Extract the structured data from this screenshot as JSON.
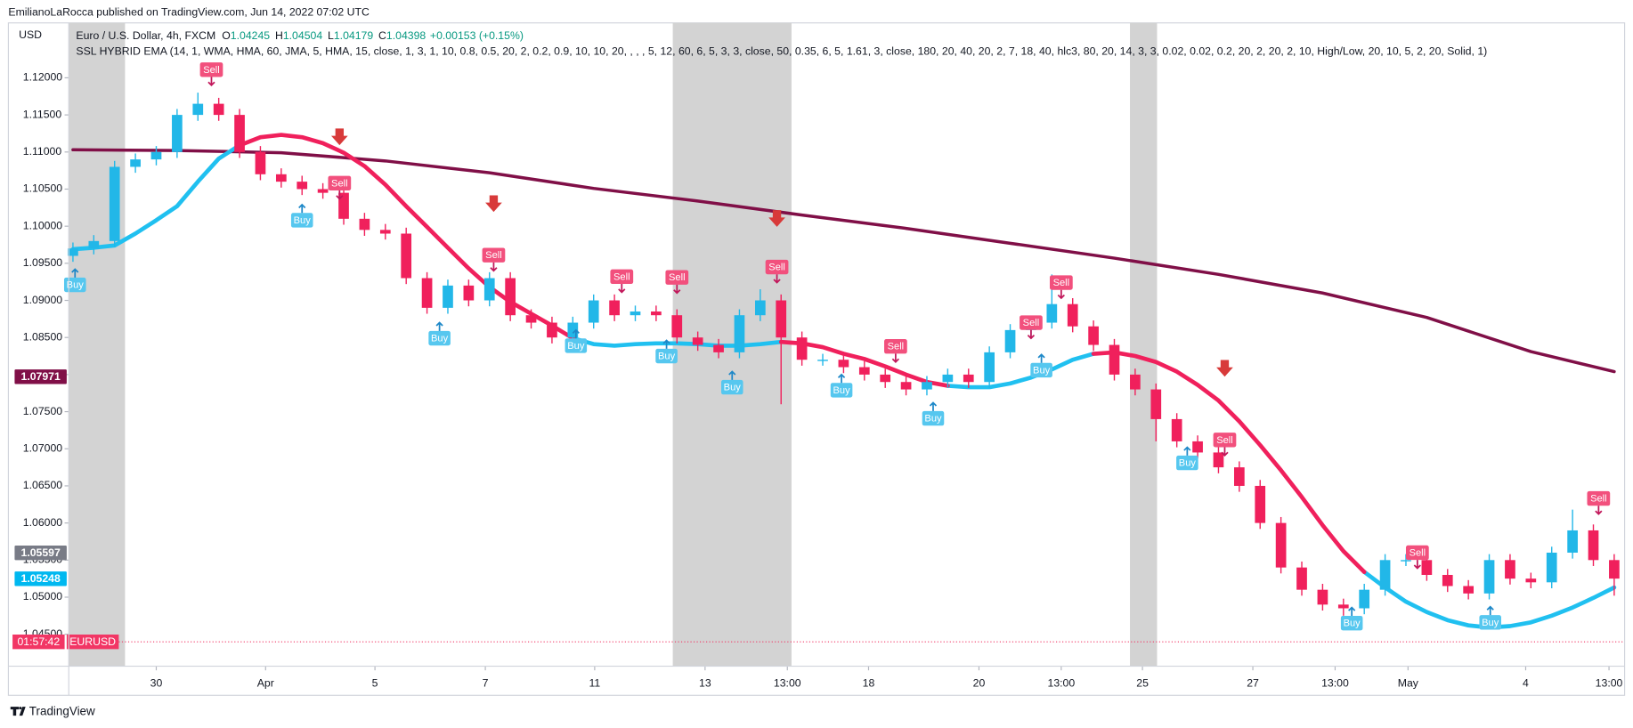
{
  "header": {
    "attribution": "EmilianoLaRocca published on TradingView.com, Jun 14, 2022 07:02 UTC"
  },
  "footer": "TradingView",
  "chart_data": {
    "type": "candlestick",
    "currency": "USD",
    "title": "Euro / U.S. Dollar, 4h, FXCM",
    "quote": [
      {
        "key": "O",
        "value": 1.04245
      },
      {
        "key": "H",
        "value": 1.04504
      },
      {
        "key": "L",
        "value": 1.04179
      },
      {
        "key": "C",
        "value": 1.04398
      }
    ],
    "change": "+0.00153 (+0.15%)",
    "indicator": "SSL HYBRID EMA (14, 1, WMA, HMA, 60, JMA, 5, HMA, 15, close, 1, 3, 1, 10, 0.8, 0.5, 20, 2, 0.2, 0.9, 10, 10, 20, , , , 5, 12, 60, 6, 5, 3, 3, close, 50, 0.35, 6, 5, 1.61, 3, close, 180, 20, 40, 20, 2, 7, 18, 40, hlc3, 80, 20, 14, 3, 3, 0.02, 0.02, 0.2, 20, 2, 20, 2, 10, High/Low, 20, 10, 5, 2, 20, Solid, 1)",
    "x": [
      0,
      1,
      2,
      3,
      4,
      5,
      6,
      7,
      8,
      9,
      10,
      11,
      12,
      13,
      14,
      15,
      16,
      17,
      18,
      19,
      20,
      21,
      22,
      23,
      24,
      25,
      26,
      27,
      28,
      29,
      30,
      31,
      32,
      33,
      34,
      35,
      36,
      37,
      38,
      39,
      40,
      41,
      42,
      43,
      44,
      45,
      46,
      47,
      48,
      49,
      50,
      51,
      52,
      53,
      54,
      55,
      56,
      57,
      58,
      59,
      60,
      61,
      62,
      63,
      64,
      65,
      66,
      67,
      68,
      69,
      70,
      71,
      72,
      73,
      74
    ],
    "open": [
      1.096,
      1.097,
      1.098,
      1.108,
      1.109,
      1.11,
      1.115,
      1.1165,
      1.115,
      1.11,
      1.107,
      1.106,
      1.105,
      1.1045,
      1.101,
      1.0995,
      1.099,
      1.093,
      1.089,
      1.092,
      1.09,
      1.093,
      1.088,
      1.087,
      1.085,
      1.087,
      1.09,
      1.088,
      1.0885,
      1.088,
      1.085,
      1.084,
      1.083,
      1.088,
      1.09,
      1.085,
      1.082,
      1.082,
      1.081,
      1.08,
      1.079,
      1.078,
      1.079,
      1.08,
      1.079,
      1.083,
      1.086,
      1.087,
      1.0895,
      1.0865,
      1.084,
      1.08,
      1.078,
      1.074,
      1.071,
      1.0695,
      1.0675,
      1.065,
      1.06,
      1.054,
      1.051,
      1.049,
      1.0485,
      1.051,
      1.055,
      1.055,
      1.053,
      1.0515,
      1.0505,
      1.055,
      1.0525,
      1.052,
      1.056,
      1.059,
      1.055
    ],
    "high": [
      1.0978,
      1.0988,
      1.1088,
      1.1098,
      1.1108,
      1.1158,
      1.118,
      1.1173,
      1.1158,
      1.1108,
      1.1078,
      1.1068,
      1.1058,
      1.1053,
      1.1018,
      1.1003,
      1.0998,
      1.0938,
      1.0928,
      1.0928,
      1.0938,
      1.0938,
      1.0888,
      1.0878,
      1.0878,
      1.0908,
      1.0908,
      1.0893,
      1.0893,
      1.0888,
      1.0858,
      1.0848,
      1.0888,
      1.0915,
      1.0908,
      1.0858,
      1.0828,
      1.0828,
      1.0818,
      1.0808,
      1.0798,
      1.0798,
      1.0808,
      1.0808,
      1.0838,
      1.0868,
      1.0878,
      1.0935,
      1.0903,
      1.0873,
      1.0848,
      1.0808,
      1.0788,
      1.0748,
      1.0718,
      1.0703,
      1.0683,
      1.0658,
      1.0608,
      1.0548,
      1.0518,
      1.0498,
      1.0518,
      1.0558,
      1.0558,
      1.0558,
      1.0538,
      1.0523,
      1.0558,
      1.0558,
      1.0533,
      1.0568,
      1.0618,
      1.0598,
      1.0558
    ],
    "low": [
      1.0952,
      1.0962,
      1.0972,
      1.1072,
      1.1082,
      1.1092,
      1.1142,
      1.1142,
      1.1092,
      1.1062,
      1.1052,
      1.1042,
      1.1037,
      1.1002,
      1.0987,
      1.0982,
      1.0922,
      1.0882,
      1.0882,
      1.0892,
      1.0892,
      1.0872,
      1.0862,
      1.0842,
      1.0842,
      1.0862,
      1.0872,
      1.0872,
      1.0872,
      1.0842,
      1.0832,
      1.0822,
      1.0822,
      1.0872,
      1.076,
      1.0812,
      1.0812,
      1.0802,
      1.0792,
      1.0782,
      1.0772,
      1.0772,
      1.0782,
      1.0782,
      1.0782,
      1.0822,
      1.0852,
      1.0862,
      1.0857,
      1.0832,
      1.0792,
      1.0772,
      1.071,
      1.0702,
      1.0687,
      1.0667,
      1.0642,
      1.0592,
      1.0532,
      1.0502,
      1.0482,
      1.0475,
      1.0477,
      1.0502,
      1.0542,
      1.0522,
      1.0507,
      1.0497,
      1.0497,
      1.0517,
      1.0512,
      1.0512,
      1.0552,
      1.0542,
      1.0502
    ],
    "close": [
      1.097,
      1.098,
      1.108,
      1.109,
      1.11,
      1.115,
      1.1165,
      1.115,
      1.11,
      1.107,
      1.106,
      1.105,
      1.1045,
      1.101,
      1.0995,
      1.099,
      1.093,
      1.089,
      1.092,
      1.09,
      1.093,
      1.088,
      1.087,
      1.085,
      1.087,
      1.09,
      1.088,
      1.0885,
      1.088,
      1.085,
      1.084,
      1.083,
      1.088,
      1.09,
      1.085,
      1.082,
      1.082,
      1.081,
      1.08,
      1.079,
      1.078,
      1.079,
      1.08,
      1.079,
      1.083,
      1.086,
      1.087,
      1.0895,
      1.0865,
      1.084,
      1.08,
      1.078,
      1.074,
      1.071,
      1.0695,
      1.0675,
      1.065,
      1.06,
      1.054,
      1.051,
      1.049,
      1.0485,
      1.051,
      1.055,
      1.055,
      1.053,
      1.0515,
      1.0505,
      1.055,
      1.0525,
      1.052,
      1.056,
      1.059,
      1.055,
      1.0525
    ],
    "up_color": "#22b7e8",
    "down_color": "#f0205c",
    "lines": [
      {
        "color": "#800f47",
        "width": 3,
        "x": [
          0,
          5,
          10,
          15,
          20,
          25,
          30,
          35,
          40,
          45,
          50,
          55,
          60,
          65,
          70,
          74
        ],
        "values": [
          1.1103,
          1.1102,
          1.1099,
          1.1088,
          1.1072,
          1.1051,
          1.1034,
          1.1015,
          1.0997,
          1.0977,
          1.0957,
          1.0935,
          1.091,
          1.0877,
          1.0831,
          1.0804
        ]
      },
      {
        "color": "#20c0f0",
        "width": 4,
        "values": [
          1.0969,
          1.0971,
          1.0974,
          1.099,
          1.1008,
          1.1027,
          1.106,
          1.1091,
          1.1109,
          null,
          null,
          null,
          null,
          null,
          null,
          null,
          null,
          null,
          null,
          null,
          null,
          null,
          null,
          null,
          1.0849,
          1.0841,
          1.0839,
          1.0841,
          1.0842,
          1.0842,
          1.0841,
          1.0839,
          1.0839,
          1.0841,
          1.0844,
          null,
          null,
          null,
          null,
          null,
          null,
          null,
          1.0785,
          1.0783,
          1.0783,
          1.0788,
          1.0796,
          1.0807,
          1.082,
          1.0828,
          null,
          null,
          null,
          null,
          null,
          null,
          null,
          null,
          null,
          null,
          null,
          null,
          1.0534,
          1.0513,
          1.0494,
          1.048,
          1.0469,
          1.0462,
          1.0459,
          1.0461,
          1.0466,
          1.0475,
          1.0486,
          1.0499,
          1.0513
        ]
      },
      {
        "color": "#f0205c",
        "width": 4,
        "values": [
          null,
          null,
          null,
          null,
          null,
          null,
          null,
          null,
          1.1109,
          1.112,
          1.1123,
          1.112,
          1.1112,
          1.1099,
          1.1081,
          1.1056,
          1.1027,
          1.0999,
          1.0971,
          1.0943,
          1.0918,
          1.0898,
          1.0882,
          1.0866,
          1.0849,
          null,
          null,
          null,
          null,
          null,
          null,
          null,
          null,
          null,
          1.0844,
          1.0842,
          1.0837,
          1.0828,
          1.0821,
          1.0811,
          1.08,
          1.079,
          1.0785,
          null,
          null,
          null,
          null,
          null,
          null,
          1.0828,
          1.083,
          1.0825,
          1.0817,
          1.0804,
          1.0786,
          1.0765,
          1.0737,
          1.0705,
          1.0671,
          1.0635,
          1.0597,
          1.0562,
          1.0534,
          null,
          null,
          null,
          null,
          null,
          null,
          null,
          null,
          null,
          null,
          null,
          null
        ]
      }
    ],
    "shaded": [
      [
        -0.2,
        2.5
      ],
      [
        28.8,
        34.5
      ],
      [
        50.75,
        52.05
      ]
    ],
    "signals": [
      {
        "label": "Sell",
        "x": 6.65,
        "y": 1.1211
      },
      {
        "label": "Sell",
        "x": 12.8,
        "y": 1.1058
      },
      {
        "label": "Sell",
        "x": 20.2,
        "y": 1.0961
      },
      {
        "label": "Sell",
        "x": 26.35,
        "y": 1.0932
      },
      {
        "label": "Sell",
        "x": 29,
        "y": 1.0931
      },
      {
        "label": "Sell",
        "x": 33.8,
        "y": 1.0945
      },
      {
        "label": "Sell",
        "x": 39.5,
        "y": 1.0838
      },
      {
        "label": "Sell",
        "x": 46,
        "y": 1.087
      },
      {
        "label": "Sell",
        "x": 47.45,
        "y": 1.0924
      },
      {
        "label": "Sell",
        "x": 55.3,
        "y": 1.0712
      },
      {
        "label": "Sell",
        "x": 64.55,
        "y": 1.056
      },
      {
        "label": "Sell",
        "x": 73.25,
        "y": 1.0633
      },
      {
        "label": "Buy",
        "x": 0.1,
        "y": 1.0921
      },
      {
        "label": "Buy",
        "x": 11,
        "y": 1.1008
      },
      {
        "label": "Buy",
        "x": 17.6,
        "y": 1.0849
      },
      {
        "label": "Buy",
        "x": 24.15,
        "y": 1.0839
      },
      {
        "label": "Buy",
        "x": 28.5,
        "y": 1.0825
      },
      {
        "label": "Buy",
        "x": 31.65,
        "y": 1.0783
      },
      {
        "label": "Buy",
        "x": 36.9,
        "y": 1.0779
      },
      {
        "label": "Buy",
        "x": 41.3,
        "y": 1.0741
      },
      {
        "label": "Buy",
        "x": 46.5,
        "y": 1.0806
      },
      {
        "label": "Buy",
        "x": 53.5,
        "y": 1.0681
      },
      {
        "label": "Buy",
        "x": 61.4,
        "y": 1.0465
      },
      {
        "label": "Buy",
        "x": 68.05,
        "y": 1.0466
      }
    ],
    "arrows": {
      "color": "#d83a3a",
      "x": [
        12.8,
        20.2,
        33.8,
        55.3
      ],
      "y": [
        1.1119,
        1.1029,
        1.1009,
        1.0807
      ]
    },
    "price_badges": [
      {
        "value": 1.07971,
        "color": "#800f47"
      },
      {
        "value": 1.05597,
        "color": "#787b86"
      },
      {
        "value": 1.05248,
        "color": "#00b8f0"
      }
    ],
    "last_price": {
      "value": 1.04398,
      "countdown": "01:57:42",
      "symbol": "EURUSD",
      "color": "#f23665"
    },
    "xlim": [
      -0.2,
      74.5
    ],
    "xticks": [
      {
        "value": 4.0,
        "label": "30"
      },
      {
        "value": 9.25,
        "label": "Apr"
      },
      {
        "value": 14.5,
        "label": "5"
      },
      {
        "value": 19.8,
        "label": "7"
      },
      {
        "value": 25.05,
        "label": "11"
      },
      {
        "value": 30.35,
        "label": "13"
      },
      {
        "value": 34.3,
        "label": "13:00"
      },
      {
        "value": 38.2,
        "label": "18"
      },
      {
        "value": 43.5,
        "label": "20"
      },
      {
        "value": 47.45,
        "label": "13:00"
      },
      {
        "value": 51.35,
        "label": "25"
      },
      {
        "value": 56.65,
        "label": "27"
      },
      {
        "value": 60.6,
        "label": "13:00"
      },
      {
        "value": 64.1,
        "label": "May"
      },
      {
        "value": 69.75,
        "label": "4"
      },
      {
        "value": 73.75,
        "label": "13:00"
      }
    ],
    "ylim": [
      1.0407,
      1.1274
    ],
    "yticks": [
      {
        "value": 1.12,
        "label": "1.12000"
      },
      {
        "value": 1.115,
        "label": "1.11500"
      },
      {
        "value": 1.11,
        "label": "1.11000"
      },
      {
        "value": 1.105,
        "label": "1.10500"
      },
      {
        "value": 1.1,
        "label": "1.10000"
      },
      {
        "value": 1.095,
        "label": "1.09500"
      },
      {
        "value": 1.09,
        "label": "1.09000"
      },
      {
        "value": 1.085,
        "label": "1.08500"
      },
      {
        "value": 1.08,
        "label": "1.08000"
      },
      {
        "value": 1.075,
        "label": "1.07500"
      },
      {
        "value": 1.07,
        "label": "1.07000"
      },
      {
        "value": 1.065,
        "label": "1.06500"
      },
      {
        "value": 1.06,
        "label": "1.06000"
      },
      {
        "value": 1.055,
        "label": "1.05500"
      },
      {
        "value": 1.05,
        "label": "1.05000"
      },
      {
        "value": 1.045,
        "label": "1.04500"
      }
    ]
  }
}
